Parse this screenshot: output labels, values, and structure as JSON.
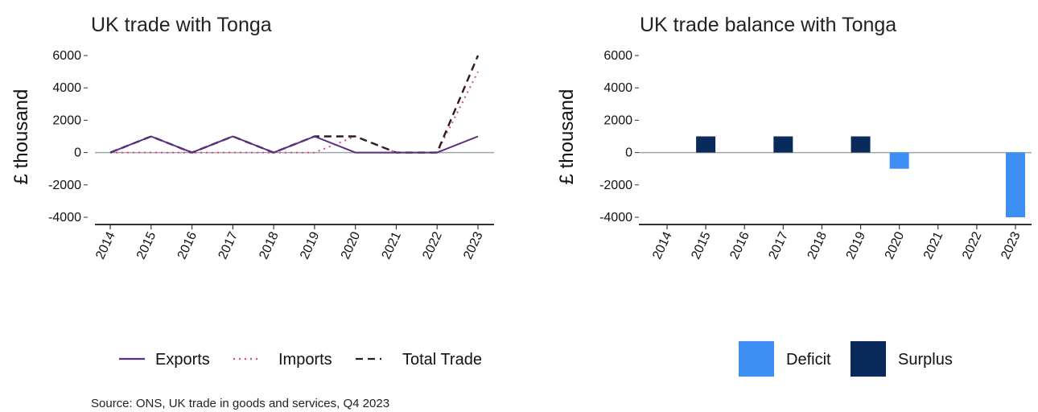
{
  "chart_data": [
    {
      "type": "line",
      "title": "UK trade with Tonga",
      "xlabel": "",
      "ylabel": "£ thousand",
      "ylim": [
        -4000,
        6000
      ],
      "yticks": [
        6000,
        4000,
        2000,
        0,
        -2000,
        -4000
      ],
      "categories": [
        "2014",
        "2015",
        "2016",
        "2017",
        "2018",
        "2019",
        "2020",
        "2021",
        "2022",
        "2023"
      ],
      "series": [
        {
          "name": "Exports",
          "color": "#5b2d82",
          "style": "solid",
          "values": [
            0,
            1000,
            0,
            1000,
            0,
            1000,
            0,
            0,
            0,
            1000
          ]
        },
        {
          "name": "Imports",
          "color": "#e0478a",
          "style": "dotted",
          "values": [
            0,
            0,
            0,
            0,
            0,
            0,
            1000,
            0,
            0,
            5000
          ]
        },
        {
          "name": "Total Trade",
          "color": "#2a1a24",
          "style": "dashed",
          "values": [
            0,
            1000,
            0,
            1000,
            0,
            1000,
            1000,
            0,
            0,
            6000
          ]
        }
      ],
      "legend_position": "bottom",
      "grid": false
    },
    {
      "type": "bar",
      "title": "UK trade balance with Tonga",
      "xlabel": "",
      "ylabel": "£ thousand",
      "ylim": [
        -4000,
        6000
      ],
      "yticks": [
        6000,
        4000,
        2000,
        0,
        -2000,
        -4000
      ],
      "categories": [
        "2014",
        "2015",
        "2016",
        "2017",
        "2018",
        "2019",
        "2020",
        "2021",
        "2022",
        "2023"
      ],
      "values": [
        0,
        1000,
        0,
        1000,
        0,
        1000,
        -1000,
        0,
        0,
        -4000
      ],
      "legend": [
        {
          "name": "Deficit",
          "color": "#3d8ef2"
        },
        {
          "name": "Surplus",
          "color": "#0b2a5c"
        }
      ],
      "legend_position": "bottom",
      "grid": false
    }
  ],
  "source": "Source: ONS, UK trade in goods and services, Q4 2023"
}
